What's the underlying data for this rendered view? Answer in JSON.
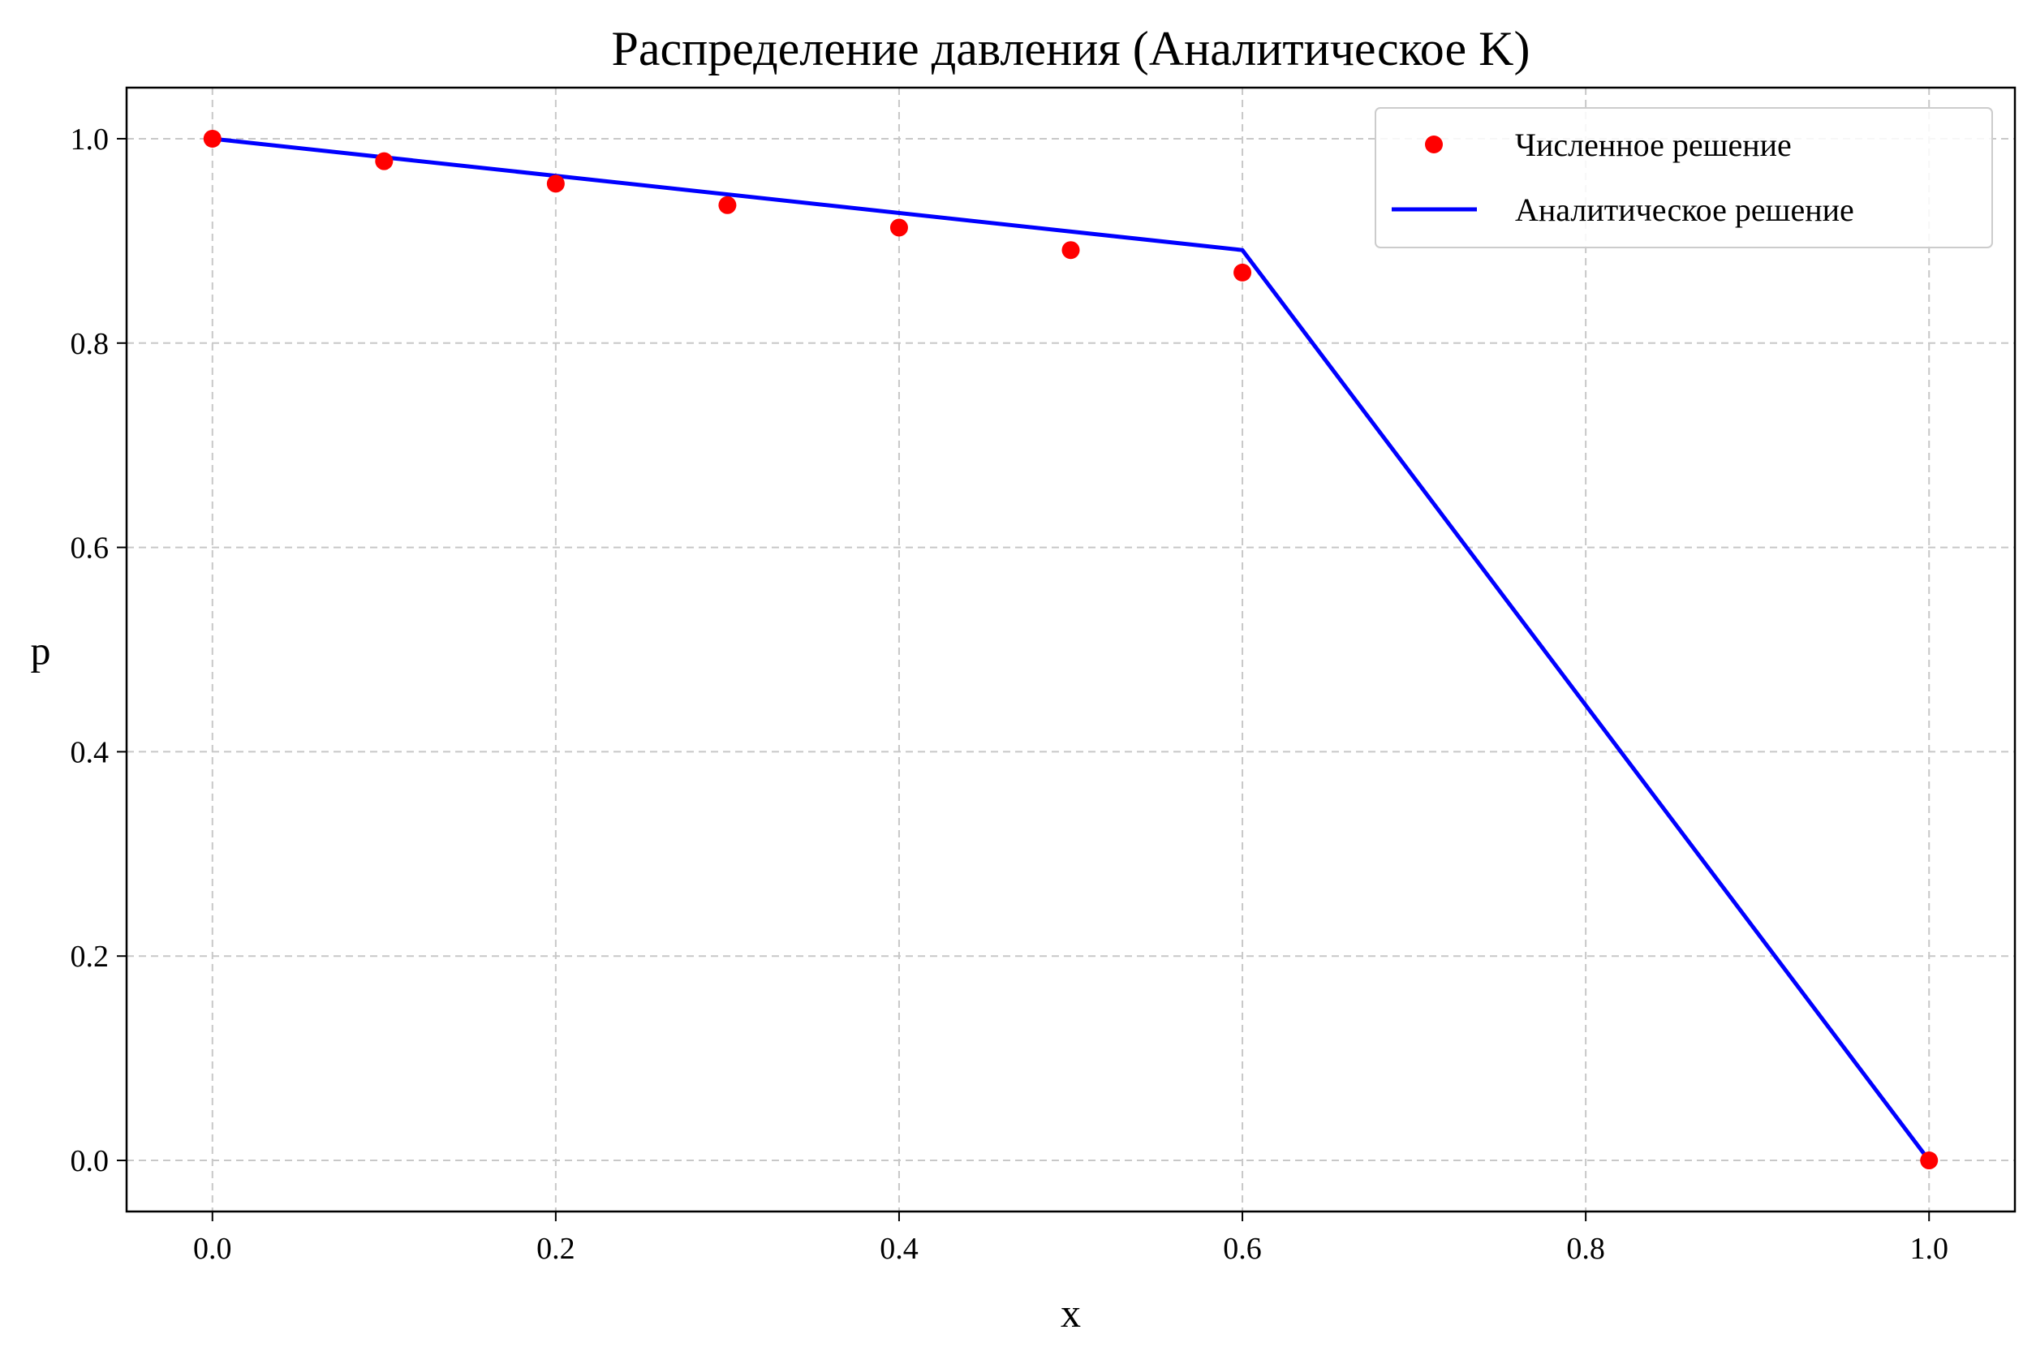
{
  "chart_data": {
    "type": "line",
    "title": "Распределение давления (Аналитическое K)",
    "xlabel": "x",
    "ylabel": "p",
    "xlim": [
      -0.05,
      1.05
    ],
    "ylim": [
      -0.05,
      1.05
    ],
    "x_ticks": [
      0.0,
      0.2,
      0.4,
      0.6,
      0.8,
      1.0
    ],
    "x_tick_labels": [
      "0.0",
      "0.2",
      "0.4",
      "0.6",
      "0.8",
      "1.0"
    ],
    "y_ticks": [
      0.0,
      0.2,
      0.4,
      0.6,
      0.8,
      1.0
    ],
    "y_tick_labels": [
      "0.0",
      "0.2",
      "0.4",
      "0.6",
      "0.8",
      "1.0"
    ],
    "grid": true,
    "legend_position": "top-right",
    "series": [
      {
        "name": "Численное решение",
        "kind": "scatter",
        "color": "#ff0000",
        "x": [
          0.0,
          0.1,
          0.2,
          0.3,
          0.4,
          0.5,
          0.6,
          1.0
        ],
        "y": [
          1.0,
          0.978,
          0.956,
          0.935,
          0.913,
          0.891,
          0.869,
          0.0
        ]
      },
      {
        "name": "Аналитическое решение",
        "kind": "line",
        "color": "#0000ff",
        "x": [
          0.0,
          0.6,
          1.0
        ],
        "y": [
          1.0,
          0.891,
          0.0
        ]
      }
    ]
  }
}
